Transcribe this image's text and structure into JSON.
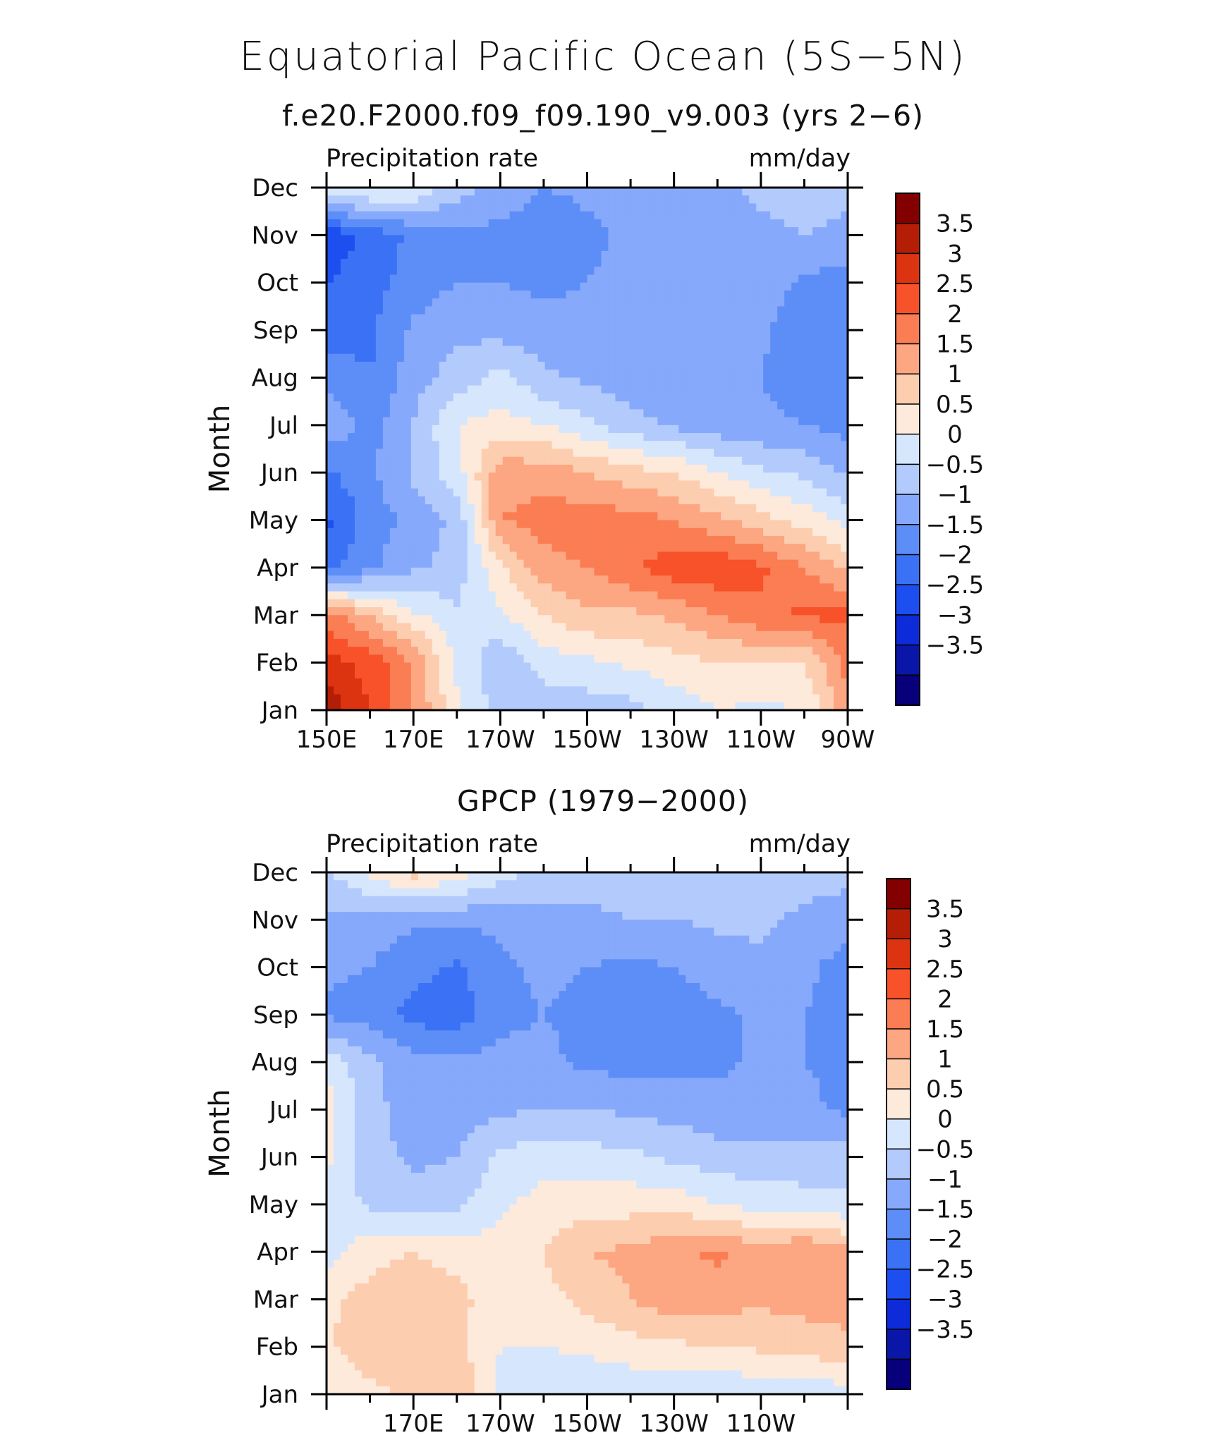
{
  "figure": {
    "title": "Equatorial Pacific Ocean (5S−5N)",
    "colors": {
      "levels": [
        "#08007b",
        "#0a16a8",
        "#0d2bd8",
        "#1d4ff0",
        "#3b72f5",
        "#5d8ef7",
        "#86a9fb",
        "#b3cbfc",
        "#d6e7fd",
        "#fdeadb",
        "#fdcdb0",
        "#fca682",
        "#fb7d53",
        "#f7522a",
        "#dc3410",
        "#b41e06",
        "#830000"
      ]
    }
  },
  "panels": [
    {
      "subtitle": "f.e20.F2000.f09_f09.190_v9.003 (yrs 2−6)",
      "left_label": "Precipitation rate",
      "right_label": "mm/day",
      "colorbar_labels": [
        "3.5",
        "3",
        "2.5",
        "2",
        "1.5",
        "1",
        "0.5",
        "0",
        "−0.5",
        "−1",
        "−1.5",
        "−2",
        "−2.5",
        "−3",
        "−3.5"
      ]
    },
    {
      "subtitle": "GPCP (1979−2000)",
      "left_label": "Precipitation rate",
      "right_label": "mm/day",
      "colorbar_labels": [
        "3.5",
        "3",
        "2.5",
        "2",
        "1.5",
        "1",
        "0.5",
        "0",
        "−0.5",
        "−1",
        "−1.5",
        "−2",
        "−2.5",
        "−3",
        "−3.5"
      ]
    }
  ],
  "chart_data": [
    {
      "type": "heatmap",
      "title": "f.e20.F2000.f09_f09.190_v9.003 (yrs 2−6)",
      "xlabel": "",
      "ylabel": "Month",
      "x": [
        150,
        160,
        170,
        180,
        190,
        200,
        210,
        220,
        230,
        240,
        250,
        260,
        270
      ],
      "xticklabels": [
        "150E",
        "170E",
        "170W",
        "150W",
        "130W",
        "110W",
        "90W"
      ],
      "y": [
        "Jan",
        "Feb",
        "Mar",
        "Apr",
        "May",
        "Jun",
        "Jul",
        "Aug",
        "Sep",
        "Oct",
        "Nov",
        "Dec"
      ],
      "levels": [
        -3.5,
        -3,
        -2.5,
        -2,
        -1.5,
        -1,
        -0.5,
        0,
        0.5,
        1,
        1.5,
        2,
        2.5,
        3,
        3.5
      ],
      "units": "mm/day",
      "z": [
        [
          3.9,
          3.0,
          2.0,
          0.6,
          -0.2,
          -0.3,
          -0.3,
          -0.2,
          0.2,
          0.5,
          0.4,
          0.5,
          1.8
        ],
        [
          3.2,
          2.8,
          2.0,
          0.4,
          -0.4,
          0.2,
          0.4,
          0.6,
          0.8,
          1.0,
          1.0,
          1.0,
          2.2
        ],
        [
          2.2,
          1.5,
          0.6,
          0.1,
          0.4,
          1.0,
          1.4,
          1.4,
          1.6,
          2.0,
          2.4,
          2.6,
          2.6
        ],
        [
          -1.7,
          -1.1,
          -0.6,
          -0.3,
          0.9,
          1.8,
          2.0,
          2.4,
          2.8,
          2.9,
          2.6,
          2.0,
          1.4
        ],
        [
          -2.1,
          -1.3,
          -0.8,
          -0.4,
          2.0,
          2.2,
          2.3,
          2.2,
          2.0,
          1.6,
          1.2,
          0.8,
          0.3
        ],
        [
          -1.6,
          -1.1,
          -0.4,
          0.3,
          1.8,
          1.8,
          1.5,
          1.2,
          1.0,
          0.5,
          0.1,
          -0.1,
          -0.6
        ],
        [
          -0.6,
          -1.2,
          -0.5,
          0.5,
          0.7,
          0.5,
          0.1,
          -0.3,
          -0.6,
          -0.8,
          -0.9,
          -1.0,
          -1.2
        ],
        [
          -1.1,
          -1.5,
          -0.7,
          -0.3,
          0.2,
          -0.4,
          -0.6,
          -0.8,
          -0.9,
          -1.0,
          -1.0,
          -1.3,
          -1.5
        ],
        [
          -1.8,
          -1.6,
          -0.9,
          -0.6,
          -0.7,
          -0.8,
          -0.9,
          -0.9,
          -0.9,
          -0.9,
          -0.9,
          -1.3,
          -1.5
        ],
        [
          -2.0,
          -1.7,
          -1.3,
          -1.0,
          -1.0,
          -1.1,
          -1.0,
          -0.9,
          -0.8,
          -0.8,
          -0.8,
          -1.1,
          -1.3
        ],
        [
          -2.4,
          -1.8,
          -1.4,
          -1.1,
          -1.2,
          -1.3,
          -1.1,
          -0.9,
          -0.8,
          -0.7,
          -0.6,
          -0.5,
          -0.6
        ],
        [
          0.5,
          0.6,
          0.5,
          -0.3,
          -0.6,
          -1.0,
          -0.9,
          -0.9,
          -0.8,
          -0.6,
          -0.4,
          -0.3,
          -0.4
        ]
      ]
    },
    {
      "type": "heatmap",
      "title": "GPCP (1979−2000)",
      "xlabel": "",
      "ylabel": "Month",
      "x": [
        150,
        160,
        170,
        180,
        190,
        200,
        210,
        220,
        230,
        240,
        250,
        260,
        270
      ],
      "xticklabels": [
        "170E",
        "170W",
        "150W",
        "130W",
        "110W"
      ],
      "y": [
        "Jan",
        "Feb",
        "Mar",
        "Apr",
        "May",
        "Jun",
        "Jul",
        "Aug",
        "Sep",
        "Oct",
        "Nov",
        "Dec"
      ],
      "levels": [
        -3.5,
        -3,
        -2.5,
        -2,
        -1.5,
        -1,
        -0.5,
        0,
        0.5,
        1,
        1.5,
        2,
        2.5,
        3,
        3.5
      ],
      "units": "mm/day",
      "z": [
        [
          0.5,
          0.8,
          1.2,
          1.4,
          0.4,
          0.2,
          0.1,
          0.1,
          0.0,
          0.1,
          0.1,
          0.1,
          0.3
        ],
        [
          0.9,
          1.4,
          1.3,
          1.2,
          0.5,
          0.5,
          0.6,
          0.8,
          0.9,
          1.0,
          1.1,
          1.2,
          1.4
        ],
        [
          0.9,
          1.2,
          1.4,
          1.2,
          0.6,
          0.8,
          1.2,
          1.5,
          1.8,
          1.7,
          1.6,
          1.7,
          1.7
        ],
        [
          0.3,
          0.8,
          1.0,
          0.8,
          0.7,
          1.0,
          1.5,
          1.6,
          1.9,
          2.1,
          1.7,
          2.0,
          1.6
        ],
        [
          0.3,
          -0.1,
          -0.3,
          -0.1,
          0.4,
          0.7,
          0.8,
          0.8,
          0.8,
          0.5,
          0.3,
          0.2,
          0.1
        ],
        [
          0.6,
          -0.3,
          -0.6,
          -0.5,
          0.1,
          0.3,
          0.2,
          0.1,
          -0.1,
          -0.3,
          -0.3,
          -0.3,
          -0.3
        ],
        [
          0.7,
          -0.3,
          -0.8,
          -0.8,
          -0.6,
          -0.5,
          -0.5,
          -0.6,
          -0.7,
          -0.8,
          -0.8,
          -0.9,
          -1.1
        ],
        [
          0.4,
          -0.4,
          -0.8,
          -0.8,
          -0.9,
          -0.9,
          -1.1,
          -1.2,
          -1.2,
          -1.1,
          -0.9,
          -1.0,
          -1.1
        ],
        [
          -1.1,
          -1.2,
          -1.7,
          -1.8,
          -1.1,
          -1.0,
          -1.1,
          -1.2,
          -1.2,
          -1.1,
          -0.9,
          -1.0,
          -1.2
        ],
        [
          -0.9,
          -1.0,
          -1.3,
          -1.6,
          -1.1,
          -0.9,
          -1.0,
          -1.1,
          -1.0,
          -0.8,
          -0.6,
          -0.9,
          -1.2
        ],
        [
          -0.6,
          -0.8,
          -0.9,
          -0.9,
          -0.9,
          -0.7,
          -0.6,
          -0.5,
          -0.5,
          -0.4,
          -0.4,
          -0.6,
          -0.8
        ],
        [
          -0.1,
          0.7,
          1.2,
          0.8,
          0.2,
          -0.2,
          -0.3,
          -0.3,
          -0.3,
          -0.3,
          -0.3,
          -0.3,
          -0.3
        ]
      ]
    }
  ]
}
